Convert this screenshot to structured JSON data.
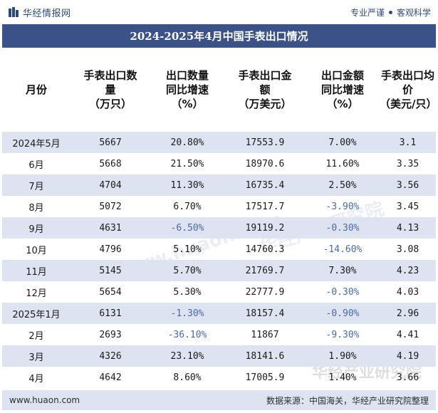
{
  "header": {
    "brand": "华经情报网",
    "slogan_left": "专业严谨",
    "slogan_right": "客观科学"
  },
  "title": "2024-2025年4月中国手表出口情况",
  "columns": [
    "月份",
    "手表出口数\n量\n（万只）",
    "出口数量\n同比增速\n（%）",
    "手表出口金\n额\n（万美元）",
    "出口金额\n同比增速\n（%）",
    "手表出口均\n价\n（美元/只）"
  ],
  "rows": [
    {
      "month": "2024年5月",
      "qty": "5667",
      "qty_yoy": "20.80%",
      "amount": "17553.9",
      "amount_yoy": "7.00%",
      "price": "3.1"
    },
    {
      "month": "6月",
      "qty": "5668",
      "qty_yoy": "21.50%",
      "amount": "18970.6",
      "amount_yoy": "11.60%",
      "price": "3.35"
    },
    {
      "month": "7月",
      "qty": "4704",
      "qty_yoy": "11.30%",
      "amount": "16735.4",
      "amount_yoy": "2.50%",
      "price": "3.56"
    },
    {
      "month": "8月",
      "qty": "5072",
      "qty_yoy": "6.70%",
      "amount": "17517.7",
      "amount_yoy": "-3.90%",
      "price": "3.45"
    },
    {
      "month": "9月",
      "qty": "4631",
      "qty_yoy": "-6.50%",
      "amount": "19119.2",
      "amount_yoy": "-0.30%",
      "price": "4.13"
    },
    {
      "month": "10月",
      "qty": "4796",
      "qty_yoy": "5.10%",
      "amount": "14760.3",
      "amount_yoy": "-14.60%",
      "price": "3.08"
    },
    {
      "month": "11月",
      "qty": "5145",
      "qty_yoy": "5.70%",
      "amount": "21769.7",
      "amount_yoy": "7.30%",
      "price": "4.23"
    },
    {
      "month": "12月",
      "qty": "5654",
      "qty_yoy": "5.30%",
      "amount": "22777.9",
      "amount_yoy": "-0.30%",
      "price": "4.03"
    },
    {
      "month": "2025年1月",
      "qty": "6131",
      "qty_yoy": "-1.30%",
      "amount": "18157.4",
      "amount_yoy": "-0.90%",
      "price": "2.96"
    },
    {
      "month": "2月",
      "qty": "2693",
      "qty_yoy": "-36.10%",
      "amount": "11867",
      "amount_yoy": "-9.30%",
      "price": "4.41"
    },
    {
      "month": "3月",
      "qty": "4326",
      "qty_yoy": "23.10%",
      "amount": "18141.6",
      "amount_yoy": "1.90%",
      "price": "4.19"
    },
    {
      "month": "4月",
      "qty": "4642",
      "qty_yoy": "8.60%",
      "amount": "17005.9",
      "amount_yoy": "1.40%",
      "price": "3.66"
    }
  ],
  "footer": {
    "website": "www.huaon.com",
    "source": "数据来源：中国海关，华经产业研究院整理"
  },
  "watermark": {
    "text": "华经产业研究院",
    "url": "www.huaon.com"
  },
  "colors": {
    "title_bg": "#3a5288",
    "stripe": "#dde3f0",
    "brand": "#2d4a7a",
    "negative": "#4a6aa8"
  }
}
